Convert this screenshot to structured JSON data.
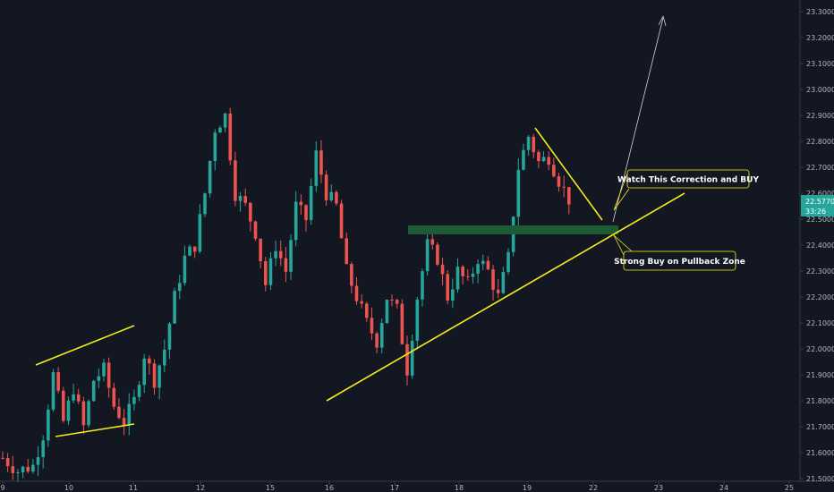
{
  "chart_data": {
    "type": "candlestick",
    "colors": {
      "background": "#131722",
      "up": "#26a69a",
      "down": "#ef5350",
      "trendline": "#f5ee1a",
      "zone": "#1e5a33",
      "arrow": "#d1d4dc",
      "price_tag": "#26a69a"
    },
    "y_axis": {
      "range": [
        21.49,
        23.345
      ],
      "ticks": [
        "21.50000",
        "21.60000",
        "21.70000",
        "21.80000",
        "21.90000",
        "22.00000",
        "22.10000",
        "22.20000",
        "22.30000",
        "22.40000",
        "22.50000",
        "22.60000",
        "22.70000",
        "22.80000",
        "22.90000",
        "23.00000",
        "23.10000",
        "23.20000",
        "23.30000"
      ]
    },
    "x_axis": {
      "ticks": [
        "9",
        "10",
        "11",
        "12",
        "15",
        "16",
        "17",
        "18",
        "19",
        "22",
        "23",
        "24",
        "25"
      ]
    },
    "current_price": {
      "value": "22.57700",
      "countdown": "33:26"
    },
    "annotations": [
      {
        "text": "Watch This Correction and BUY"
      },
      {
        "text": "Strong Buy on Pullback Zone"
      }
    ],
    "price_anchors": [
      [
        0,
        21.58
      ],
      [
        3,
        21.53
      ],
      [
        6,
        21.55
      ],
      [
        8,
        21.67
      ],
      [
        10,
        21.9
      ],
      [
        12,
        21.72
      ],
      [
        14,
        21.85
      ],
      [
        16,
        21.7
      ],
      [
        18,
        21.88
      ],
      [
        20,
        21.92
      ],
      [
        22,
        21.78
      ],
      [
        24,
        21.72
      ],
      [
        26,
        21.8
      ],
      [
        28,
        21.98
      ],
      [
        30,
        21.88
      ],
      [
        32,
        22.0
      ],
      [
        34,
        22.2
      ],
      [
        36,
        22.35
      ],
      [
        38,
        22.4
      ],
      [
        40,
        22.6
      ],
      [
        42,
        22.85
      ],
      [
        44,
        22.9
      ],
      [
        46,
        22.6
      ],
      [
        48,
        22.55
      ],
      [
        50,
        22.45
      ],
      [
        52,
        22.25
      ],
      [
        54,
        22.4
      ],
      [
        56,
        22.3
      ],
      [
        58,
        22.55
      ],
      [
        60,
        22.5
      ],
      [
        62,
        22.75
      ],
      [
        64,
        22.6
      ],
      [
        66,
        22.55
      ],
      [
        68,
        22.3
      ],
      [
        70,
        22.2
      ],
      [
        72,
        22.1
      ],
      [
        74,
        22.03
      ],
      [
        76,
        22.2
      ],
      [
        78,
        22.15
      ],
      [
        80,
        21.92
      ],
      [
        82,
        22.2
      ],
      [
        84,
        22.4
      ],
      [
        86,
        22.35
      ],
      [
        88,
        22.2
      ],
      [
        90,
        22.3
      ],
      [
        92,
        22.25
      ],
      [
        94,
        22.35
      ],
      [
        96,
        22.3
      ],
      [
        98,
        22.2
      ],
      [
        100,
        22.35
      ],
      [
        102,
        22.7
      ],
      [
        104,
        22.82
      ],
      [
        106,
        22.72
      ],
      [
        108,
        22.74
      ],
      [
        110,
        22.65
      ],
      [
        112,
        22.577
      ]
    ]
  }
}
